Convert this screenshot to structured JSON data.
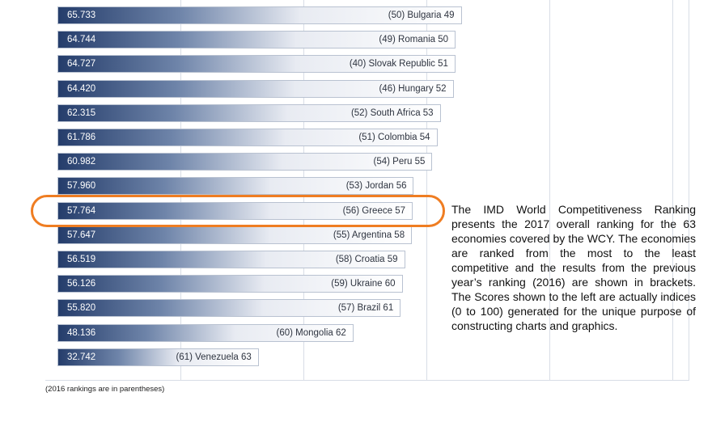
{
  "chart_data": {
    "type": "bar",
    "orientation": "horizontal",
    "scale_max": 100,
    "rows": [
      {
        "score": "65.733",
        "label": "(50) Bulgaria 49",
        "value": 65.733
      },
      {
        "score": "64.744",
        "label": "(49) Romania 50",
        "value": 64.744
      },
      {
        "score": "64.727",
        "label": "(40) Slovak Republic 51",
        "value": 64.727
      },
      {
        "score": "64.420",
        "label": "(46) Hungary 52",
        "value": 64.42
      },
      {
        "score": "62.315",
        "label": "(52) South Africa 53",
        "value": 62.315
      },
      {
        "score": "61.786",
        "label": "(51) Colombia 54",
        "value": 61.786
      },
      {
        "score": "60.982",
        "label": "(54) Peru 55",
        "value": 60.982
      },
      {
        "score": "57.960",
        "label": "(53) Jordan 56",
        "value": 57.96
      },
      {
        "score": "57.764",
        "label": "(56) Greece 57",
        "value": 57.764,
        "highlighted": true
      },
      {
        "score": "57.647",
        "label": "(55) Argentina 58",
        "value": 57.647
      },
      {
        "score": "56.519",
        "label": "(58) Croatia 59",
        "value": 56.519
      },
      {
        "score": "56.126",
        "label": "(59) Ukraine 60",
        "value": 56.126
      },
      {
        "score": "55.820",
        "label": "(57) Brazil 61",
        "value": 55.82
      },
      {
        "score": "48.136",
        "label": "(60) Mongolia 62",
        "value": 48.136
      },
      {
        "score": "32.742",
        "label": "(61) Venezuela 63",
        "value": 32.742
      }
    ],
    "highlight_color": "#ef7d22",
    "bar_dark_color": "#253d6b",
    "grid": true
  },
  "description": "The IMD World Competitiveness Ranking presents the 2017 overall ranking for the 63 economies covered by the WCY. The economies are ranked from the most to the least competitive and the results from the previous year’s ranking (2016) are shown in brackets. The Scores shown to the left are actually indices (0 to 100) generated for the unique purpose of constructing charts and graphics.",
  "footnote": "(2016 rankings are in parentheses)"
}
